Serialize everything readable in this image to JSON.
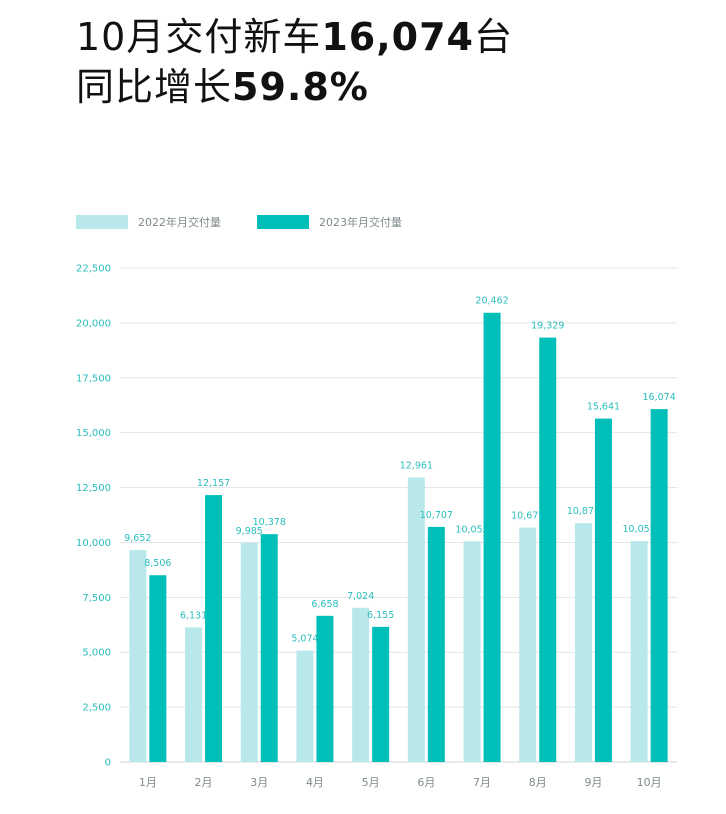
{
  "headline": {
    "line1_prefix": "10月交付新车",
    "line1_value": "16,074",
    "line1_suffix": "台",
    "line2_prefix": "同比增长",
    "line2_value": "59.8%"
  },
  "colors": {
    "series_2022": "#b8e8ea",
    "series_2023": "#00bfb8",
    "grid": "#e3e6e6",
    "label": "#2bbdbd"
  },
  "chart_data": {
    "type": "bar",
    "categories": [
      "1月",
      "2月",
      "3月",
      "4月",
      "5月",
      "6月",
      "7月",
      "8月",
      "9月",
      "10月"
    ],
    "series": [
      {
        "name": "2022年月交付量",
        "values": [
          9652,
          6131,
          9985,
          5074,
          7024,
          12961,
          10052,
          10677,
          10878,
          10059
        ]
      },
      {
        "name": "2023年月交付量",
        "values": [
          8506,
          12157,
          10378,
          6658,
          6155,
          10707,
          20462,
          19329,
          15641,
          16074
        ]
      }
    ],
    "yticks": [
      "0",
      "2,500",
      "5,000",
      "7,500",
      "10,000",
      "12,500",
      "15,000",
      "17,500",
      "20,000",
      "22,500"
    ],
    "ylim": [
      0,
      22500
    ],
    "legend": "top-left",
    "grid": true
  }
}
